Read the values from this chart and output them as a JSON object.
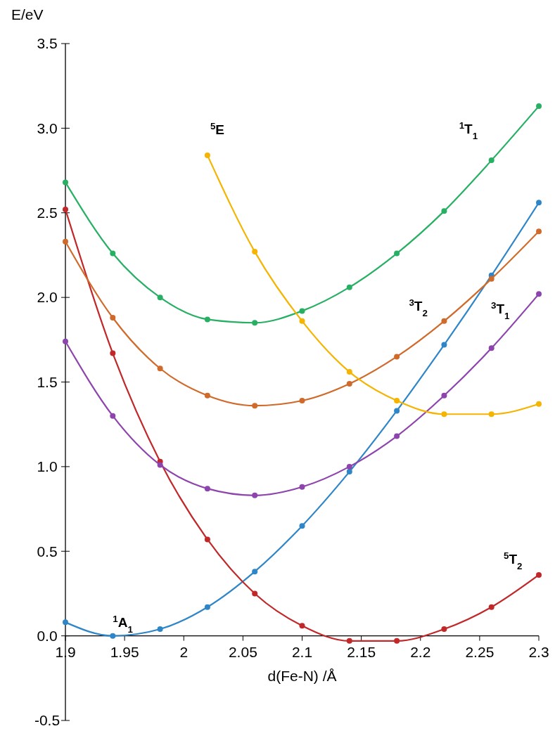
{
  "chart_data": {
    "type": "line",
    "xlabel": "d(Fe-N) /Å",
    "ylabel": "E/eV",
    "x": [
      1.9,
      1.94,
      1.98,
      2.02,
      2.06,
      2.1,
      2.14,
      2.18,
      2.22,
      2.26,
      2.3
    ],
    "xlim": [
      1.9,
      2.3
    ],
    "xticks": [
      1.9,
      1.95,
      2,
      2.05,
      2.1,
      2.15,
      2.2,
      2.25,
      2.3
    ],
    "ylim": [
      -0.5,
      3.5
    ],
    "yticks": [
      -0.5,
      {
        "value": 0,
        "label": "0.0"
      },
      0.5,
      {
        "value": 1,
        "label": "1.0"
      },
      1.5,
      {
        "value": 2,
        "label": "2.0"
      },
      2.5,
      {
        "value": 3,
        "label": "3.0"
      },
      3.5
    ],
    "grid": false,
    "marker": "circle",
    "line_style": "solid",
    "series": [
      {
        "name": "$^{1}$A$_{1}$",
        "color": "#2e86c8",
        "values": [
          0.08,
          0.0,
          0.04,
          0.17,
          0.38,
          0.65,
          0.97,
          1.33,
          1.72,
          2.13,
          2.56
        ]
      },
      {
        "name": "$^{5}$T$_{2}$",
        "color": "#c0282a",
        "values": [
          2.52,
          1.67,
          1.03,
          0.57,
          0.25,
          0.06,
          -0.03,
          -0.03,
          0.04,
          0.17,
          0.36
        ]
      },
      {
        "name": "$^{3}$T$_{1}$",
        "color": "#8e44ad",
        "values": [
          1.74,
          1.3,
          1.01,
          0.87,
          0.83,
          0.88,
          1.0,
          1.18,
          1.42,
          1.7,
          2.02
        ]
      },
      {
        "name": "$^{3}$T$_{2}$",
        "color": "#d06a2a",
        "values": [
          2.33,
          1.88,
          1.58,
          1.42,
          1.36,
          1.39,
          1.49,
          1.65,
          1.86,
          2.11,
          2.39
        ]
      },
      {
        "name": "$^{1}$T$_{1}$",
        "color": "#27b064",
        "values": [
          2.68,
          2.26,
          2.0,
          1.87,
          1.85,
          1.92,
          2.06,
          2.26,
          2.51,
          2.81,
          3.13
        ]
      },
      {
        "name": "$^{5}$E",
        "color": "#f4b400",
        "values": [
          null,
          null,
          null,
          2.84,
          2.27,
          1.86,
          1.56,
          1.39,
          1.31,
          1.31,
          1.37
        ]
      }
    ]
  }
}
